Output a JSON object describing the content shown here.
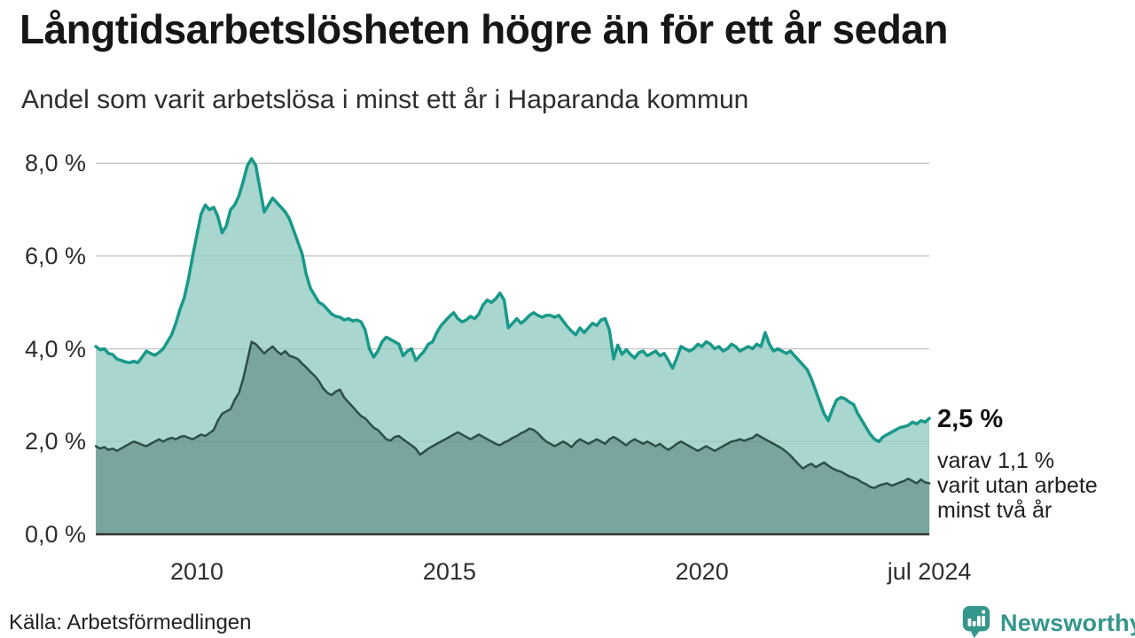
{
  "header": {
    "title": "Långtidsarbetslösheten högre än för ett år sedan",
    "subtitle": "Andel som varit arbetslösa i minst ett år i Haparanda kommun"
  },
  "chart_data": {
    "type": "area",
    "title": "Långtidsarbetslösheten högre än för ett år sedan",
    "subtitle": "Andel som varit arbetslösa i minst ett år i Haparanda kommun",
    "x_unit": "month (decimal years, 2008-01 to 2024-07)",
    "xlim": [
      2008.0,
      2024.5
    ],
    "ylim": [
      0,
      8
    ],
    "grid": true,
    "legend_position": "none",
    "y_ticks": [
      {
        "value": 0,
        "label": "0,0 %"
      },
      {
        "value": 2,
        "label": "2,0 %"
      },
      {
        "value": 4,
        "label": "4,0 %"
      },
      {
        "value": 6,
        "label": "6,0 %"
      },
      {
        "value": 8,
        "label": "8,0 %"
      }
    ],
    "x_ticks": [
      {
        "value": 2010,
        "label": "2010"
      },
      {
        "value": 2015,
        "label": "2015"
      },
      {
        "value": 2020,
        "label": "2020"
      },
      {
        "value": 2024.5,
        "label": "jul 2024"
      }
    ],
    "series": [
      {
        "name": "arbetslösa minst ett år",
        "color": "#18998a",
        "fill": "#a9d6ce",
        "start": "2008-01",
        "end": "2024-07",
        "latest_value": 2.5,
        "values": [
          4.05,
          3.98,
          4.0,
          3.9,
          3.88,
          3.78,
          3.75,
          3.72,
          3.7,
          3.73,
          3.7,
          3.82,
          3.95,
          3.9,
          3.86,
          3.92,
          4.0,
          4.15,
          4.3,
          4.55,
          4.85,
          5.1,
          5.5,
          6.0,
          6.45,
          6.9,
          7.1,
          7.0,
          7.05,
          6.85,
          6.5,
          6.65,
          7.0,
          7.1,
          7.3,
          7.6,
          7.95,
          8.1,
          7.95,
          7.45,
          6.95,
          7.1,
          7.25,
          7.15,
          7.05,
          6.95,
          6.8,
          6.55,
          6.3,
          6.05,
          5.6,
          5.3,
          5.15,
          5.0,
          4.95,
          4.85,
          4.75,
          4.7,
          4.68,
          4.62,
          4.65,
          4.6,
          4.62,
          4.58,
          4.4,
          4.0,
          3.82,
          3.95,
          4.15,
          4.25,
          4.2,
          4.15,
          4.1,
          3.85,
          3.95,
          4.0,
          3.75,
          3.85,
          3.95,
          4.1,
          4.15,
          4.35,
          4.5,
          4.6,
          4.7,
          4.78,
          4.65,
          4.58,
          4.62,
          4.7,
          4.65,
          4.75,
          4.95,
          5.05,
          5.0,
          5.08,
          5.2,
          5.05,
          4.45,
          4.55,
          4.65,
          4.55,
          4.62,
          4.72,
          4.78,
          4.72,
          4.68,
          4.72,
          4.72,
          4.68,
          4.72,
          4.6,
          4.48,
          4.38,
          4.3,
          4.45,
          4.35,
          4.45,
          4.55,
          4.5,
          4.62,
          4.65,
          4.4,
          3.78,
          4.08,
          3.88,
          3.98,
          3.88,
          3.8,
          3.92,
          3.95,
          3.85,
          3.9,
          3.95,
          3.85,
          3.9,
          3.75,
          3.58,
          3.8,
          4.05,
          4.0,
          3.95,
          4.0,
          4.1,
          4.05,
          4.15,
          4.1,
          4.0,
          4.05,
          3.95,
          4.0,
          4.1,
          4.05,
          3.95,
          4.0,
          4.05,
          4.0,
          4.1,
          4.05,
          4.35,
          4.1,
          3.95,
          4.0,
          3.95,
          3.9,
          3.95,
          3.85,
          3.75,
          3.65,
          3.55,
          3.35,
          3.1,
          2.85,
          2.6,
          2.45,
          2.7,
          2.9,
          2.95,
          2.92,
          2.85,
          2.8,
          2.6,
          2.45,
          2.3,
          2.15,
          2.05,
          2.0,
          2.1,
          2.15,
          2.2,
          2.25,
          2.3,
          2.32,
          2.35,
          2.42,
          2.38,
          2.45,
          2.42,
          2.5
        ]
      },
      {
        "name": "varav utan arbete minst två år",
        "color": "#2d4f49",
        "fill": "#79a59e",
        "start": "2008-01",
        "end": "2024-07",
        "latest_value": 1.1,
        "values": [
          1.9,
          1.85,
          1.88,
          1.82,
          1.85,
          1.8,
          1.85,
          1.9,
          1.95,
          2.0,
          1.97,
          1.93,
          1.9,
          1.95,
          2.0,
          2.05,
          2.0,
          2.05,
          2.08,
          2.05,
          2.1,
          2.12,
          2.08,
          2.05,
          2.1,
          2.15,
          2.12,
          2.18,
          2.25,
          2.45,
          2.6,
          2.65,
          2.7,
          2.9,
          3.05,
          3.35,
          3.75,
          4.15,
          4.1,
          4.0,
          3.9,
          3.98,
          4.05,
          3.95,
          3.88,
          3.95,
          3.85,
          3.82,
          3.78,
          3.68,
          3.6,
          3.5,
          3.42,
          3.3,
          3.15,
          3.05,
          3.0,
          3.08,
          3.12,
          2.95,
          2.85,
          2.75,
          2.65,
          2.55,
          2.5,
          2.4,
          2.3,
          2.25,
          2.15,
          2.05,
          2.02,
          2.1,
          2.12,
          2.05,
          1.98,
          1.92,
          1.85,
          1.72,
          1.78,
          1.85,
          1.9,
          1.95,
          2.0,
          2.05,
          2.1,
          2.15,
          2.2,
          2.15,
          2.1,
          2.05,
          2.1,
          2.15,
          2.1,
          2.05,
          2.0,
          1.95,
          1.92,
          1.98,
          2.02,
          2.08,
          2.12,
          2.18,
          2.22,
          2.28,
          2.25,
          2.18,
          2.08,
          2.0,
          1.95,
          1.9,
          1.95,
          2.0,
          1.95,
          1.88,
          1.98,
          2.05,
          2.0,
          1.95,
          2.0,
          2.05,
          2.0,
          1.95,
          2.05,
          2.1,
          2.05,
          1.98,
          1.92,
          2.0,
          2.05,
          2.0,
          1.95,
          2.0,
          1.95,
          1.9,
          1.95,
          1.88,
          1.82,
          1.88,
          1.95,
          2.0,
          1.95,
          1.9,
          1.85,
          1.8,
          1.85,
          1.9,
          1.85,
          1.8,
          1.85,
          1.9,
          1.95,
          2.0,
          2.02,
          2.05,
          2.02,
          2.05,
          2.08,
          2.15,
          2.1,
          2.05,
          2.0,
          1.95,
          1.9,
          1.85,
          1.78,
          1.7,
          1.6,
          1.5,
          1.42,
          1.48,
          1.52,
          1.45,
          1.5,
          1.55,
          1.48,
          1.42,
          1.38,
          1.35,
          1.3,
          1.25,
          1.22,
          1.18,
          1.12,
          1.08,
          1.02,
          1.0,
          1.05,
          1.08,
          1.1,
          1.05,
          1.08,
          1.12,
          1.15,
          1.2,
          1.15,
          1.1,
          1.18,
          1.12,
          1.1
        ]
      }
    ],
    "annotations": {
      "end_value_label": "2,5 %",
      "note_lines": [
        "varav 1,1 %",
        "varit utan arbete",
        "minst två år"
      ]
    },
    "colors": {
      "line_1yr": "#18998a",
      "fill_1yr": "#a9d6ce",
      "line_2yr": "#2d4f49",
      "fill_2yr": "#79a59e",
      "gridline": "#d9d9d9",
      "axis_baseline": "#333333",
      "brand_teal": "#35968b"
    }
  },
  "footer": {
    "source": "Källa: Arbetsförmedlingen",
    "brand": "Newsworthy"
  }
}
